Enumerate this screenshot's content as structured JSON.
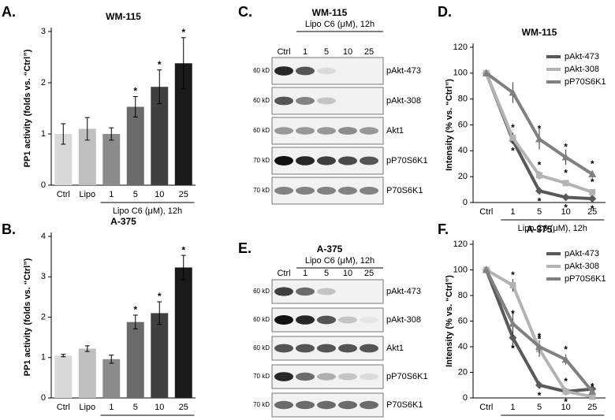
{
  "chart_data": [
    {
      "type": "bar",
      "panel": "A.",
      "title": "WM-115",
      "ylabel": "PP1 activity (folds vs. “Ctrl”)",
      "xgroup_label": "Lipo C6 (μM), 12h",
      "categories": [
        "Ctrl",
        "Lipo",
        "1",
        "5",
        "10",
        "25"
      ],
      "values": [
        1.0,
        1.1,
        1.0,
        1.53,
        1.92,
        2.38
      ],
      "errors": [
        0.2,
        0.22,
        0.12,
        0.2,
        0.33,
        0.5
      ],
      "stars": [
        null,
        null,
        null,
        "*",
        "*",
        "*"
      ],
      "colors": [
        "#d9d9d9",
        "#bfbfbf",
        "#8c8c8c",
        "#6b6b6b",
        "#404040",
        "#1a1a1a"
      ],
      "ylim": [
        0,
        3
      ],
      "yticks": [
        0,
        1,
        2,
        3
      ]
    },
    {
      "type": "bar",
      "panel": "B.",
      "title": "A-375",
      "ylabel": "PP1 activity (folds vs. “Ctrl”)",
      "xgroup_label": "Lipo C6 (μM), 12h",
      "categories": [
        "Ctrl",
        "Lipo",
        "1",
        "5",
        "10",
        "25"
      ],
      "values": [
        1.05,
        1.22,
        0.96,
        1.88,
        2.1,
        3.23
      ],
      "errors": [
        0.03,
        0.07,
        0.1,
        0.17,
        0.28,
        0.3
      ],
      "stars": [
        null,
        null,
        null,
        "*",
        "*",
        "*"
      ],
      "colors": [
        "#d9d9d9",
        "#bfbfbf",
        "#8c8c8c",
        "#6b6b6b",
        "#404040",
        "#1a1a1a"
      ],
      "ylim": [
        0,
        4
      ],
      "yticks": [
        0,
        1,
        2,
        3,
        4
      ]
    },
    {
      "type": "line",
      "panel": "D.",
      "title": "WM-115",
      "ylabel": "Intensity (% vs. “Ctrl”)",
      "xgroup_label": "Lipo C6 (μM), 12h",
      "categories": [
        "Ctrl",
        "1",
        "5",
        "10",
        "25"
      ],
      "ylim": [
        0,
        120
      ],
      "yticks": [
        0,
        20,
        40,
        60,
        80,
        100,
        120
      ],
      "legend": "upper right",
      "series": [
        {
          "name": "pAkt-473",
          "color": "#595959",
          "marker": "diamond",
          "values": [
            100,
            48,
            9,
            4,
            3
          ],
          "errors": [
            0,
            3,
            2,
            1,
            1
          ],
          "stars": [
            null,
            "*",
            "*",
            "*",
            "*"
          ]
        },
        {
          "name": "pAkt-308",
          "color": "#b3b3b3",
          "marker": "square",
          "values": [
            100,
            50,
            21,
            15,
            8
          ],
          "errors": [
            0,
            4,
            3,
            2,
            2
          ],
          "stars": [
            null,
            "*",
            "*",
            "*",
            "*"
          ]
        },
        {
          "name": "pP70S6K1",
          "color": "#808080",
          "marker": "triangle",
          "values": [
            100,
            85,
            49,
            35,
            22
          ],
          "errors": [
            0,
            8,
            8,
            6,
            3
          ],
          "stars": [
            null,
            null,
            "*",
            "*",
            "*"
          ]
        }
      ]
    },
    {
      "type": "line",
      "panel": "F.",
      "title": "A-375",
      "ylabel": "Intensity (% vs. “Ctrl”)",
      "xgroup_label": "Lipo C6 (μM), 12h",
      "categories": [
        "Ctrl",
        "1",
        "5",
        "10",
        "25"
      ],
      "ylim": [
        0,
        120
      ],
      "yticks": [
        0,
        20,
        40,
        60,
        80,
        100,
        120
      ],
      "legend": "upper right",
      "series": [
        {
          "name": "pAkt-473",
          "color": "#595959",
          "marker": "diamond",
          "values": [
            100,
            47,
            10,
            5,
            7
          ],
          "errors": [
            0,
            8,
            3,
            2,
            2
          ],
          "stars": [
            null,
            "*",
            "*",
            "*",
            "*"
          ]
        },
        {
          "name": "pAkt-308",
          "color": "#b3b3b3",
          "marker": "square",
          "values": [
            100,
            88,
            38,
            5,
            1
          ],
          "errors": [
            0,
            5,
            6,
            2,
            1
          ],
          "stars": [
            null,
            "*",
            "*",
            "*",
            "*"
          ]
        },
        {
          "name": "pP70S6K1",
          "color": "#808080",
          "marker": "triangle",
          "values": [
            100,
            58,
            40,
            30,
            5
          ],
          "errors": [
            0,
            10,
            5,
            4,
            2
          ],
          "stars": [
            null,
            "*",
            "*",
            "*",
            null
          ]
        }
      ]
    }
  ],
  "blots": [
    {
      "panel": "C.",
      "title": "WM-115",
      "treatment": "Lipo C6 (μM), 12h",
      "lanes": [
        "Ctrl",
        "1",
        "5",
        "10",
        "25"
      ],
      "rows": [
        {
          "kd": "60 kD",
          "name": "pAkt-473"
        },
        {
          "kd": "60 kD",
          "name": "pAkt-308"
        },
        {
          "kd": "60 kD",
          "name": "Akt1"
        },
        {
          "kd": "70 kD",
          "name": "pP70S6K1"
        },
        {
          "kd": "70 kD",
          "name": "P70S6K1"
        }
      ]
    },
    {
      "panel": "E.",
      "title": "A-375",
      "treatment": "Lipo C6 (μM), 12h",
      "lanes": [
        "Ctrl",
        "1",
        "5",
        "10",
        "25"
      ],
      "rows": [
        {
          "kd": "60 kD",
          "name": "pAkt-473"
        },
        {
          "kd": "60 kD",
          "name": "pAkt-308"
        },
        {
          "kd": "60 kD",
          "name": "Akt1"
        },
        {
          "kd": "70 kD",
          "name": "pP70S6K1"
        },
        {
          "kd": "70 kD",
          "name": "P70S6K1"
        }
      ]
    }
  ]
}
